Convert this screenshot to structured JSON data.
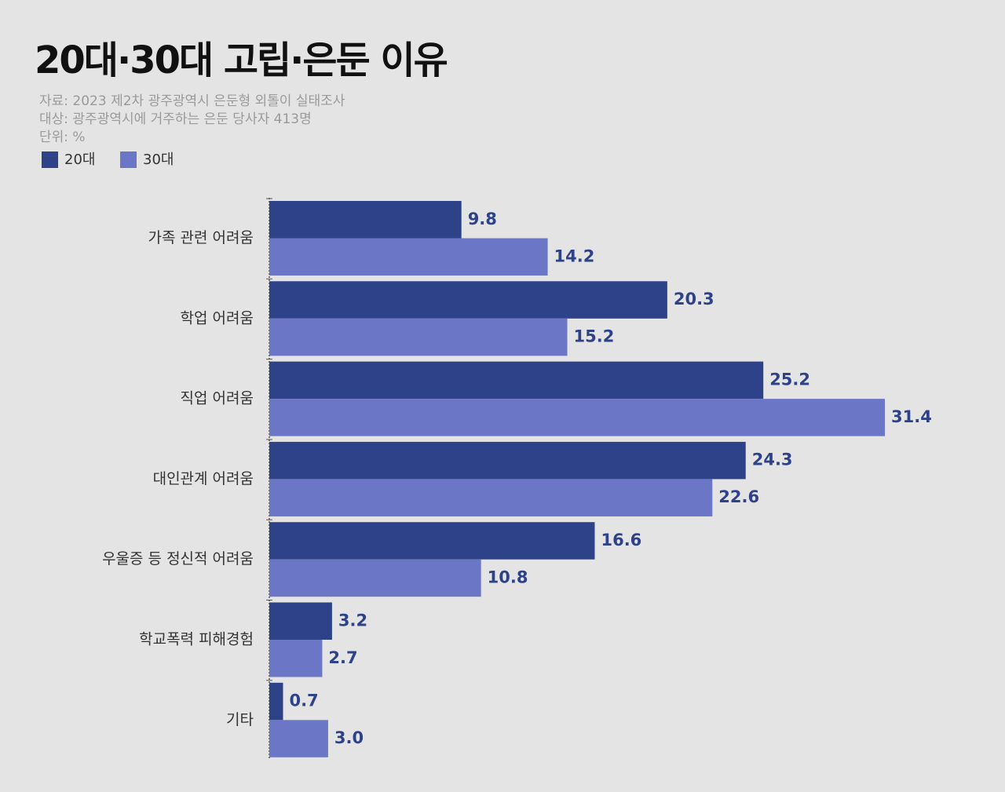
{
  "chart_data": {
    "type": "hbar",
    "title": "20대·30대 고립·은둔 이유",
    "subtitle": [
      "자료: 2023 제2차 광주광역시 은둔형 외톨이 실태조사",
      "대상: 광주광역시에 거주하는 은둔 당사자 413명",
      "단위: %"
    ],
    "categories": [
      "가족 관련 어려움",
      "학업 어려움",
      "직업 어려움",
      "대인관계 어려움",
      "우울증 등 정신적 어려움",
      "학교폭력 피해경험",
      "기타"
    ],
    "series": [
      {
        "name": "20대",
        "color": "#2d4289",
        "values": [
          9.8,
          20.3,
          25.2,
          24.3,
          16.6,
          3.2,
          0.7
        ],
        "value_labels": [
          "9.8",
          "20.3",
          "25.2",
          "24.3",
          "16.6",
          "3.2",
          "0.7"
        ]
      },
      {
        "name": "30대",
        "color": "#6b76c6",
        "values": [
          14.2,
          15.2,
          31.4,
          22.6,
          10.8,
          2.7,
          3.0
        ],
        "value_labels": [
          "14.2",
          "15.2",
          "31.4",
          "22.6",
          "10.8",
          "2.7",
          "3.0"
        ]
      }
    ]
  }
}
